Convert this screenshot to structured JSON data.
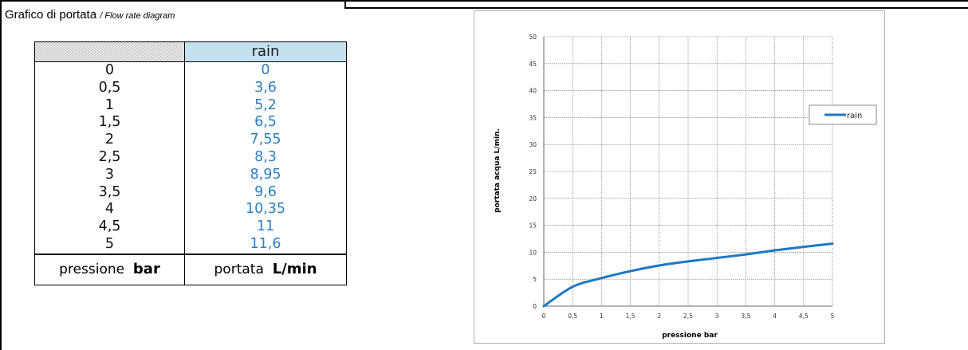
{
  "heading": {
    "title": "Grafico di portata",
    "subtitle": "/ Flow rate diagram"
  },
  "table": {
    "header_label": "rain",
    "rows": [
      {
        "p": "0",
        "v": "0"
      },
      {
        "p": "0,5",
        "v": "3,6"
      },
      {
        "p": "1",
        "v": "5,2"
      },
      {
        "p": "1,5",
        "v": "6,5"
      },
      {
        "p": "2",
        "v": "7,55"
      },
      {
        "p": "2,5",
        "v": "8,3"
      },
      {
        "p": "3",
        "v": "8,95"
      },
      {
        "p": "3,5",
        "v": "9,6"
      },
      {
        "p": "4",
        "v": "10,35"
      },
      {
        "p": "4,5",
        "v": "11"
      },
      {
        "p": "5",
        "v": "11,6"
      }
    ],
    "footer": {
      "left_text": "pressione",
      "left_unit": "bar",
      "right_text": "portata",
      "right_unit": "L/min"
    }
  },
  "colors": {
    "series": "#1f77c4",
    "table_values": "#2e7fc0",
    "header_fill": "#c4e2ee"
  },
  "chart_data": {
    "type": "line",
    "x": [
      0,
      0.5,
      1,
      1.5,
      2,
      2.5,
      3,
      3.5,
      4,
      4.5,
      5
    ],
    "series": [
      {
        "name": "rain",
        "values": [
          0,
          3.6,
          5.2,
          6.5,
          7.55,
          8.3,
          8.95,
          9.6,
          10.35,
          11,
          11.6
        ]
      }
    ],
    "xlabel": "pressione bar",
    "ylabel": "portata acqua L/min.",
    "xlim": [
      0,
      5
    ],
    "ylim": [
      0,
      50
    ],
    "xticks": [
      "0",
      "0,5",
      "1",
      "1,5",
      "2",
      "2,5",
      "3",
      "3,5",
      "4",
      "4,5",
      "5"
    ],
    "yticks": [
      "0",
      "5",
      "10",
      "15",
      "20",
      "25",
      "30",
      "35",
      "40",
      "45",
      "50"
    ],
    "grid": true,
    "legend": "right"
  }
}
